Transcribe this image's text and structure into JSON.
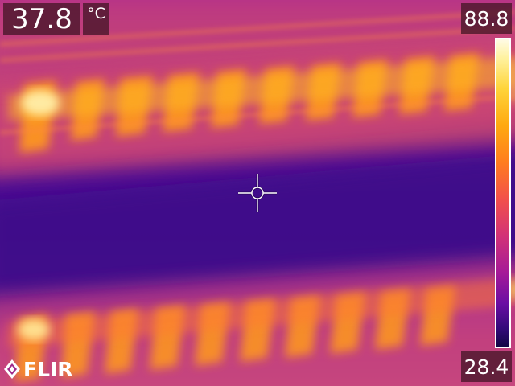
{
  "camera": {
    "brand": "FLIR",
    "spot_temperature": "37.8",
    "unit": "°C",
    "scale_max": "88.8",
    "scale_min": "28.4",
    "palette": "iron",
    "palette_colors": {
      "hot": "#fff2a0",
      "warm": "#ffa910",
      "mid": "#f2504b",
      "cool": "#a51a98",
      "cold": "#340a7a"
    }
  }
}
